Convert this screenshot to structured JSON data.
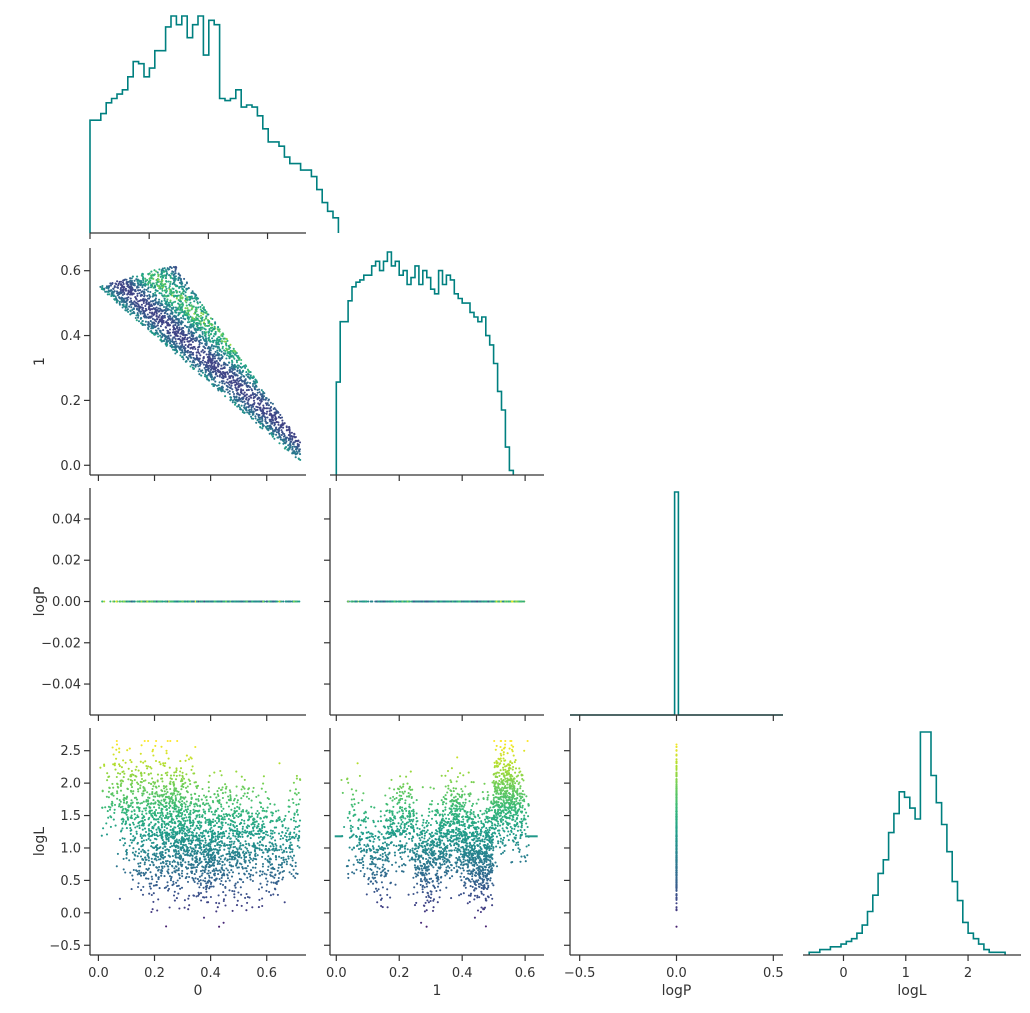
{
  "figure": {
    "kind": "corner-plot",
    "colormap": "viridis",
    "hist_color": "#008080",
    "axis_color": "#333333",
    "variables": [
      "0",
      "1",
      "logP",
      "logL"
    ]
  },
  "chart_data": [
    {
      "panel": "hist-0",
      "type": "histogram",
      "variable": "0",
      "x_range": [
        0.0,
        0.73
      ],
      "xticks": [
        "",
        "",
        "",
        ""
      ],
      "xtick_values": [
        0.0,
        0.2,
        0.4,
        0.6
      ],
      "bin_edges_start": 0.0,
      "bin_width": 0.01825,
      "counts": [
        52,
        52,
        55,
        60,
        62,
        64,
        66,
        72,
        79,
        78,
        72,
        76,
        84,
        84,
        95,
        100,
        96,
        100,
        90,
        96,
        100,
        82,
        98,
        96,
        62,
        61,
        62,
        66,
        58,
        59,
        58,
        54,
        48,
        42,
        42,
        40,
        35,
        32,
        32,
        29,
        29,
        26,
        20,
        14,
        10,
        7
      ]
    },
    {
      "panel": "scatter-1-vs-0",
      "type": "scatter",
      "x_variable": "0",
      "y_variable": "1",
      "x_range": [
        -0.03,
        0.74
      ],
      "y_range": [
        -0.03,
        0.67
      ],
      "xticks": [
        "",
        "",
        "",
        ""
      ],
      "xtick_values": [
        0.0,
        0.2,
        0.4,
        0.6
      ],
      "yticks": [
        "0.0",
        "0.2",
        "0.4",
        "0.6"
      ],
      "ytick_values": [
        0.0,
        0.2,
        0.4,
        0.6
      ],
      "ylabel": "1",
      "region": "parallelogram between 1 ≈ 0.55 − 0.75·0 (lower edge) and 1 ≈ 0.62 at 0 ≈ 0.27 to 1 ≈ 0.07 at 0 ≈ 0.72",
      "n_points": 3000
    },
    {
      "panel": "hist-1",
      "type": "histogram",
      "variable": "1",
      "x_range": [
        -0.02,
        0.66
      ],
      "xticks": [
        "",
        "",
        "",
        ""
      ],
      "xtick_values": [
        0.0,
        0.2,
        0.4,
        0.6
      ],
      "bin_edges_start": 0.0,
      "bin_width": 0.0125,
      "counts": [
        40,
        66,
        66,
        75,
        81,
        83,
        84,
        86,
        86,
        90,
        92,
        88,
        92,
        96,
        90,
        92,
        86,
        88,
        82,
        85,
        90,
        82,
        88,
        85,
        80,
        78,
        88,
        82,
        86,
        84,
        78,
        76,
        74,
        74,
        70,
        68,
        66,
        68,
        60,
        56,
        48,
        36,
        28,
        12,
        2
      ]
    },
    {
      "panel": "scatter-logP-vs-0",
      "type": "scatter",
      "x_variable": "0",
      "y_variable": "logP",
      "x_range": [
        -0.03,
        0.74
      ],
      "y_range": [
        -0.055,
        0.055
      ],
      "xticks": [
        "",
        "",
        "",
        ""
      ],
      "xtick_values": [
        0.0,
        0.2,
        0.4,
        0.6
      ],
      "yticks": [
        "−0.04",
        "−0.02",
        "0.00",
        "0.02",
        "0.04"
      ],
      "ytick_values": [
        -0.04,
        -0.02,
        0.0,
        0.02,
        0.04
      ],
      "ylabel": "logP",
      "constant_y": 0.0,
      "n_points": 600
    },
    {
      "panel": "scatter-logP-vs-1",
      "type": "scatter",
      "x_variable": "1",
      "y_variable": "logP",
      "x_range": [
        -0.02,
        0.66
      ],
      "y_range": [
        -0.055,
        0.055
      ],
      "xticks": [
        "",
        "",
        "",
        ""
      ],
      "xtick_values": [
        0.0,
        0.2,
        0.4,
        0.6
      ],
      "yticks": [
        "",
        "",
        "",
        "",
        ""
      ],
      "ytick_values": [
        -0.04,
        -0.02,
        0.0,
        0.02,
        0.04
      ],
      "constant_y": 0.0,
      "n_points": 600
    },
    {
      "panel": "hist-logP",
      "type": "histogram",
      "variable": "logP",
      "x_range": [
        -0.55,
        0.55
      ],
      "xticks": [
        "",
        "",
        ""
      ],
      "xtick_values": [
        -0.5,
        0.0,
        0.5
      ],
      "bins": [
        {
          "x0": -0.55,
          "x1": -0.01,
          "count": 0
        },
        {
          "x0": -0.01,
          "x1": 0.01,
          "count": 1
        },
        {
          "x0": 0.01,
          "x1": 0.55,
          "count": 0
        }
      ]
    },
    {
      "panel": "scatter-logL-vs-0",
      "type": "scatter",
      "x_variable": "0",
      "y_variable": "logL",
      "x_range": [
        -0.03,
        0.74
      ],
      "y_range": [
        -0.65,
        2.85
      ],
      "xticks": [
        "0.0",
        "0.2",
        "0.4",
        "0.6"
      ],
      "xtick_values": [
        0.0,
        0.2,
        0.4,
        0.6
      ],
      "xlabel": "0",
      "yticks": [
        "−0.5",
        "0.0",
        "0.5",
        "1.0",
        "1.5",
        "2.0",
        "2.5"
      ],
      "ytick_values": [
        -0.5,
        0.0,
        0.5,
        1.0,
        1.5,
        2.0,
        2.5
      ],
      "ylabel": "logL",
      "n_points": 2500
    },
    {
      "panel": "scatter-logL-vs-1",
      "type": "scatter",
      "x_variable": "1",
      "y_variable": "logL",
      "x_range": [
        -0.02,
        0.66
      ],
      "y_range": [
        -0.65,
        2.85
      ],
      "xticks": [
        "0.0",
        "0.2",
        "0.4",
        "0.6"
      ],
      "xtick_values": [
        0.0,
        0.2,
        0.4,
        0.6
      ],
      "xlabel": "1",
      "yticks": [
        "",
        "",
        "",
        "",
        "",
        "",
        ""
      ],
      "ytick_values": [
        -0.5,
        0.0,
        0.5,
        1.0,
        1.5,
        2.0,
        2.5
      ],
      "n_points": 2500
    },
    {
      "panel": "scatter-logL-vs-logP",
      "type": "scatter",
      "x_variable": "logP",
      "y_variable": "logL",
      "x_range": [
        -0.55,
        0.55
      ],
      "y_range": [
        -0.65,
        2.85
      ],
      "xticks": [
        "−0.5",
        "0.0",
        "0.5"
      ],
      "xtick_values": [
        -0.5,
        0.0,
        0.5
      ],
      "xlabel": "logP",
      "yticks": [
        "",
        "",
        "",
        "",
        "",
        "",
        ""
      ],
      "ytick_values": [
        -0.5,
        0.0,
        0.5,
        1.0,
        1.5,
        2.0,
        2.5
      ],
      "constant_x": 0.0,
      "n_points": 500
    },
    {
      "panel": "hist-logL",
      "type": "histogram",
      "variable": "logL",
      "x_range": [
        -0.65,
        2.85
      ],
      "xticks": [
        "0",
        "1",
        "2"
      ],
      "xtick_values": [
        0,
        1,
        2
      ],
      "xlabel": "logL",
      "bin_edges_start": -0.55,
      "bin_width": 0.085,
      "counts": [
        1,
        1,
        2,
        2,
        3,
        3,
        4,
        5,
        6,
        8,
        11,
        16,
        22,
        30,
        35,
        45,
        52,
        60,
        58,
        54,
        50,
        82,
        82,
        66,
        56,
        48,
        38,
        27,
        20,
        12,
        8,
        6,
        4,
        2,
        1,
        1,
        1
      ]
    }
  ]
}
